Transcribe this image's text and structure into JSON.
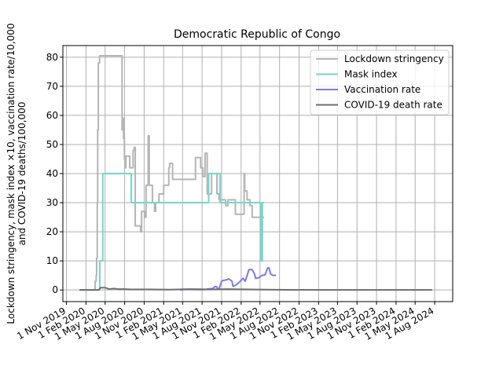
{
  "chart_data": {
    "type": "line",
    "title": "Democratic Republic of Congo",
    "ylabel_lines": [
      "Lockdown stringency, mask index ×10, vaccination rate/10,000",
      "and COVID-19 deaths/100,000"
    ],
    "xlabel": "",
    "ylim": [
      -4,
      84
    ],
    "xlim": [
      "2019-10-15",
      "2024-10-25"
    ],
    "grid": true,
    "legend_position": "top-right",
    "y_ticks": [
      0,
      10,
      20,
      30,
      40,
      50,
      60,
      70,
      80
    ],
    "x_ticks": [
      {
        "date": "2019-11-01",
        "label": "1 Nov 2019"
      },
      {
        "date": "2020-02-01",
        "label": "1 Feb 2020"
      },
      {
        "date": "2020-05-01",
        "label": "1 May 2020"
      },
      {
        "date": "2020-08-01",
        "label": "1 Aug 2020"
      },
      {
        "date": "2020-11-01",
        "label": "1 Nov 2020"
      },
      {
        "date": "2021-02-01",
        "label": "1 Feb 2021"
      },
      {
        "date": "2021-05-01",
        "label": "1 May 2021"
      },
      {
        "date": "2021-08-01",
        "label": "1 Aug 2021"
      },
      {
        "date": "2021-11-01",
        "label": "1 Nov 2021"
      },
      {
        "date": "2022-02-01",
        "label": "1 Feb 2022"
      },
      {
        "date": "2022-05-01",
        "label": "1 May 2022"
      },
      {
        "date": "2022-08-01",
        "label": "1 Aug 2022"
      },
      {
        "date": "2022-11-01",
        "label": "1 Nov 2022"
      },
      {
        "date": "2023-02-01",
        "label": "1 Feb 2023"
      },
      {
        "date": "2023-05-01",
        "label": "1 May 2023"
      },
      {
        "date": "2023-08-01",
        "label": "1 Aug 2023"
      },
      {
        "date": "2023-11-01",
        "label": "1 Nov 2023"
      },
      {
        "date": "2024-02-01",
        "label": "1 Feb 2024"
      },
      {
        "date": "2024-05-01",
        "label": "1 May 2024"
      },
      {
        "date": "2024-08-01",
        "label": "1 Aug 2024"
      }
    ],
    "series": [
      {
        "name": "Lockdown stringency",
        "color": "#b5b5b5",
        "line_width": 2,
        "step": true,
        "points": [
          [
            "2020-01-01",
            0
          ],
          [
            "2020-03-10",
            0
          ],
          [
            "2020-03-15",
            3
          ],
          [
            "2020-03-20",
            5
          ],
          [
            "2020-03-22",
            11
          ],
          [
            "2020-03-25",
            30
          ],
          [
            "2020-03-27",
            55
          ],
          [
            "2020-03-30",
            78
          ],
          [
            "2020-04-05",
            80.5
          ],
          [
            "2020-07-20",
            55
          ],
          [
            "2020-07-23",
            59
          ],
          [
            "2020-07-27",
            52
          ],
          [
            "2020-07-31",
            45
          ],
          [
            "2020-08-03",
            42
          ],
          [
            "2020-08-07",
            46
          ],
          [
            "2020-08-25",
            42
          ],
          [
            "2020-09-10",
            48
          ],
          [
            "2020-09-15",
            49
          ],
          [
            "2020-09-20",
            22
          ],
          [
            "2020-10-15",
            20
          ],
          [
            "2020-10-20",
            27
          ],
          [
            "2020-10-25",
            27
          ],
          [
            "2020-11-05",
            25
          ],
          [
            "2020-11-10",
            36
          ],
          [
            "2020-11-20",
            53
          ],
          [
            "2020-11-25",
            36
          ],
          [
            "2020-12-10",
            30
          ],
          [
            "2020-12-20",
            27
          ],
          [
            "2020-12-25",
            30
          ],
          [
            "2021-01-10",
            33
          ],
          [
            "2021-02-01",
            36
          ],
          [
            "2021-02-25",
            42
          ],
          [
            "2021-03-01",
            43.5
          ],
          [
            "2021-03-15",
            38
          ],
          [
            "2021-06-10",
            38
          ],
          [
            "2021-07-01",
            45.5
          ],
          [
            "2021-07-25",
            42
          ],
          [
            "2021-08-05",
            39
          ],
          [
            "2021-08-15",
            47
          ],
          [
            "2021-08-25",
            33
          ],
          [
            "2021-09-15",
            40
          ],
          [
            "2021-10-10",
            33
          ],
          [
            "2021-10-20",
            31
          ],
          [
            "2021-11-20",
            29
          ],
          [
            "2021-12-01",
            31
          ],
          [
            "2022-01-05",
            26
          ],
          [
            "2022-02-15",
            40
          ],
          [
            "2022-02-18",
            34
          ],
          [
            "2022-03-01",
            31
          ],
          [
            "2022-03-15",
            29
          ],
          [
            "2022-03-25",
            25
          ],
          [
            "2022-05-20",
            25
          ]
        ]
      },
      {
        "name": "Mask index",
        "color": "#74d6d0",
        "line_width": 2,
        "step": true,
        "points": [
          [
            "2020-01-01",
            0
          ],
          [
            "2020-04-05",
            0
          ],
          [
            "2020-04-06",
            10
          ],
          [
            "2020-04-20",
            40
          ],
          [
            "2020-09-01",
            30
          ],
          [
            "2021-09-01",
            40
          ],
          [
            "2021-10-25",
            30
          ],
          [
            "2022-05-05",
            10
          ],
          [
            "2022-05-12",
            30
          ],
          [
            "2022-05-20",
            30
          ]
        ]
      },
      {
        "name": "Vaccination rate",
        "color": "#7b7be6",
        "line_width": 2,
        "step": false,
        "points": [
          [
            "2021-04-20",
            0
          ],
          [
            "2021-05-20",
            0.2
          ],
          [
            "2021-08-10",
            0.1
          ],
          [
            "2021-09-01",
            0.4
          ],
          [
            "2021-09-20",
            0.5
          ],
          [
            "2021-10-01",
            1.2
          ],
          [
            "2021-10-10",
            1.0
          ],
          [
            "2021-10-15",
            0.3
          ],
          [
            "2021-10-20",
            0.4
          ],
          [
            "2021-11-01",
            3.0
          ],
          [
            "2021-11-10",
            3.3
          ],
          [
            "2021-11-25",
            3.5
          ],
          [
            "2021-12-05",
            3.8
          ],
          [
            "2021-12-20",
            3.0
          ],
          [
            "2021-12-25",
            1.2
          ],
          [
            "2022-01-10",
            1.8
          ],
          [
            "2022-01-25",
            2.8
          ],
          [
            "2022-02-10",
            4.0
          ],
          [
            "2022-02-20",
            3.0
          ],
          [
            "2022-02-25",
            4.0
          ],
          [
            "2022-03-10",
            7.0
          ],
          [
            "2022-03-25",
            7.0
          ],
          [
            "2022-04-05",
            5.5
          ],
          [
            "2022-04-10",
            4.0
          ],
          [
            "2022-04-25",
            4.2
          ],
          [
            "2022-05-10",
            5.0
          ],
          [
            "2022-05-25",
            5.2
          ],
          [
            "2022-06-05",
            7.5
          ],
          [
            "2022-06-12",
            7.6
          ],
          [
            "2022-06-20",
            5.5
          ],
          [
            "2022-07-01",
            5.0
          ],
          [
            "2022-07-15",
            5.0
          ]
        ]
      },
      {
        "name": "COVID-19 death rate",
        "color": "#6e6e6e",
        "line_width": 2,
        "step": false,
        "points": [
          [
            "2020-01-01",
            0
          ],
          [
            "2020-04-01",
            0
          ],
          [
            "2020-04-10",
            0.8
          ],
          [
            "2020-05-01",
            0.8
          ],
          [
            "2020-05-20",
            0.3
          ],
          [
            "2020-06-10",
            0.5
          ],
          [
            "2020-07-01",
            0.3
          ],
          [
            "2020-08-01",
            0.3
          ],
          [
            "2020-09-01",
            0.2
          ],
          [
            "2020-12-01",
            0.2
          ],
          [
            "2021-03-01",
            0.1
          ],
          [
            "2021-06-01",
            0.3
          ],
          [
            "2021-09-01",
            0.2
          ],
          [
            "2021-12-01",
            0.3
          ],
          [
            "2022-03-01",
            0.2
          ],
          [
            "2022-06-01",
            0.1
          ],
          [
            "2022-09-01",
            0.05
          ],
          [
            "2023-03-01",
            0
          ],
          [
            "2023-09-01",
            0
          ],
          [
            "2024-03-01",
            0
          ],
          [
            "2024-07-20",
            0
          ]
        ]
      }
    ]
  }
}
